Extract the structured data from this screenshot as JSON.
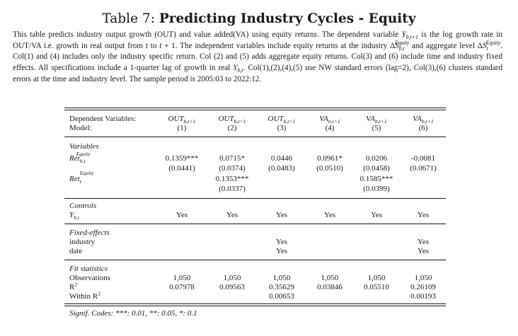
{
  "title": {
    "label": "Table 7:",
    "text": "Predicting Industry Cycles - Equity"
  },
  "caption": {
    "p1": "This table predicts industry output growth (OUT) and value added(VA) using equity returns. The dependent variable ",
    "p2": " is the log growth rate in OUT/VA i.e. growth in real output from ",
    "p3": " to ",
    "p4": ". The independent variables include equity returns at the industry ",
    "p5": " and aggregate level ",
    "p6": ". Col(1) and (4) includes only the industry specific return. Col (2) and (5) adds aggregate equity returns. Col(3) and (6) include time and industry fixed effects. All specifications include a 1-quarter lag of growth in real ",
    "p7": ". Col(1),(2),(4),(5) use NW standard errors (lag=2), Col(3),(6) clusters standard errors at the time and industry level. The sample period is 2005:03 to 2022:12."
  },
  "header": {
    "dep_label": "Dependent Variables:",
    "model_label": "Model:",
    "columns": [
      {
        "dep": "OUT",
        "num": "(1)"
      },
      {
        "dep": "OUT",
        "num": "(2)"
      },
      {
        "dep": "OUT",
        "num": "(3)"
      },
      {
        "dep": "VA",
        "num": "(4)"
      },
      {
        "dep": "VA",
        "num": "(5)"
      },
      {
        "dep": "VA",
        "num": "(6)"
      }
    ]
  },
  "variables": {
    "section": "Variables",
    "ret_ind": {
      "coef": [
        "0.1359***",
        "0.0715*",
        "0.0446",
        "0.0961*",
        "0.0206",
        "-0.0081"
      ],
      "se": [
        "(0.0441)",
        "(0.0374)",
        "(0.0483)",
        "(0.0510)",
        "(0.0458)",
        "(0.0671)"
      ]
    },
    "ret_agg": {
      "coef": [
        "",
        "0.1353***",
        "",
        "",
        "0.1585***",
        ""
      ],
      "se": [
        "",
        "(0.0337)",
        "",
        "",
        "(0.0399)",
        ""
      ]
    }
  },
  "controls": {
    "section": "Controls",
    "values": [
      "Yes",
      "Yes",
      "Yes",
      "Yes",
      "Yes",
      "Yes"
    ]
  },
  "fixed_effects": {
    "section": "Fixed-effects",
    "industry": {
      "label": "industry",
      "values": [
        "",
        "",
        "Yes",
        "",
        "",
        "Yes"
      ]
    },
    "date": {
      "label": "date",
      "values": [
        "",
        "",
        "Yes",
        "",
        "",
        "Yes"
      ]
    }
  },
  "fit": {
    "section": "Fit statistics",
    "obs": {
      "label": "Observations",
      "values": [
        "1,050",
        "1,050",
        "1,050",
        "1,050",
        "1,050",
        "1,050"
      ]
    },
    "r2": {
      "label": "R",
      "values": [
        "0.07978",
        "0.09563",
        "0.35629",
        "0.03846",
        "0.05510",
        "0.26109"
      ]
    },
    "wr2": {
      "label": "Within R",
      "values": [
        "",
        "",
        "0.00653",
        "",
        "",
        "0.00193"
      ]
    }
  },
  "footnote": "Signif. Codes: ***: 0.01, **: 0.05, *: 0.1"
}
